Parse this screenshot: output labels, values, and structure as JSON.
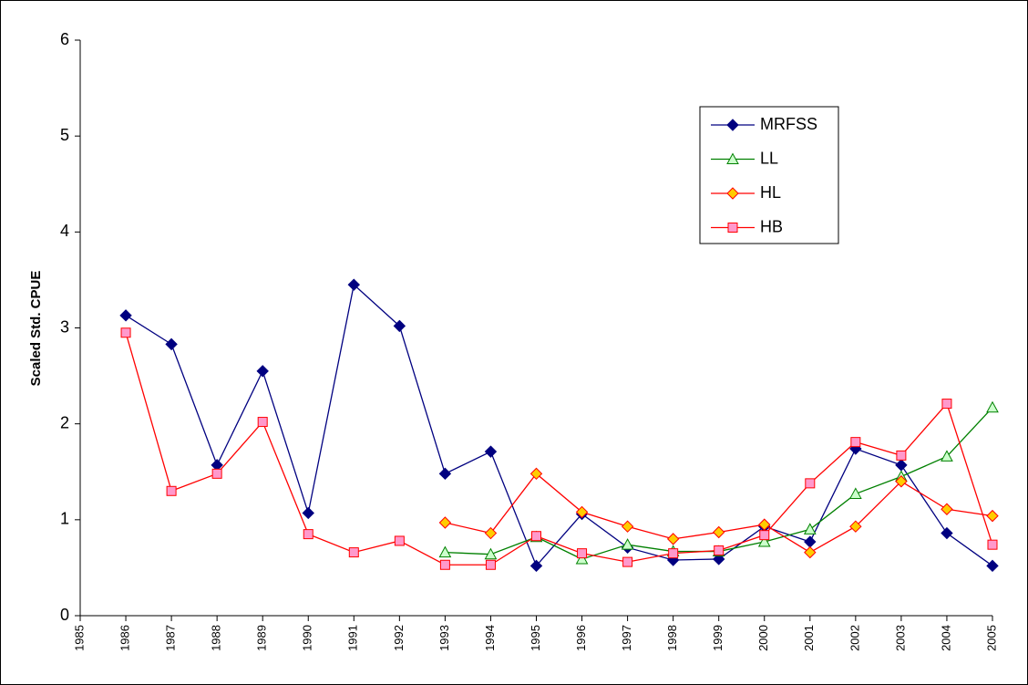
{
  "chart_data": {
    "type": "line",
    "y_label": "Scaled Std. CPUE",
    "x": [
      1986,
      1987,
      1988,
      1989,
      1990,
      1991,
      1992,
      1993,
      1994,
      1995,
      1996,
      1997,
      1998,
      1999,
      2000,
      2001,
      2002,
      2003,
      2004,
      2005
    ],
    "xlim": [
      1985,
      2005
    ],
    "xticks": [
      1985,
      1986,
      1987,
      1988,
      1989,
      1990,
      1991,
      1992,
      1993,
      1994,
      1995,
      1996,
      1997,
      1998,
      1999,
      2000,
      2001,
      2002,
      2003,
      2004,
      2005
    ],
    "ylim": [
      0,
      6
    ],
    "yticks": [
      0,
      1,
      2,
      3,
      4,
      5,
      6
    ],
    "grid": false,
    "legend": "upper right",
    "series": [
      {
        "name": "MRFSS",
        "color": "#000080",
        "marker": "diamond",
        "marker_fill": "#000080",
        "values": [
          3.13,
          2.83,
          1.57,
          2.55,
          1.07,
          3.45,
          3.02,
          1.48,
          1.71,
          0.52,
          1.06,
          0.71,
          0.58,
          0.59,
          0.93,
          0.77,
          1.74,
          1.57,
          0.86,
          0.52
        ]
      },
      {
        "name": "LL",
        "color": "#008000",
        "marker": "triangle",
        "marker_fill": "#ccffcc",
        "values": [
          null,
          null,
          null,
          null,
          null,
          null,
          null,
          0.66,
          0.64,
          0.82,
          0.59,
          0.74,
          0.67,
          0.67,
          0.77,
          0.9,
          1.27,
          1.45,
          1.66,
          2.17
        ]
      },
      {
        "name": "HL",
        "color": "#ff0000",
        "marker": "diamond",
        "marker_fill": "#ffcc00",
        "values": [
          null,
          null,
          null,
          null,
          null,
          null,
          null,
          0.97,
          0.86,
          1.48,
          1.08,
          0.93,
          0.8,
          0.87,
          0.95,
          0.66,
          0.93,
          1.4,
          1.11,
          1.04
        ]
      },
      {
        "name": "HB",
        "color": "#ff0000",
        "marker": "square",
        "marker_fill": "#ff99cc",
        "values": [
          2.95,
          1.3,
          1.48,
          2.02,
          0.85,
          0.66,
          0.78,
          0.53,
          0.53,
          0.83,
          0.65,
          0.56,
          0.65,
          0.68,
          0.84,
          1.38,
          1.81,
          1.67,
          2.21,
          0.74
        ]
      }
    ]
  }
}
